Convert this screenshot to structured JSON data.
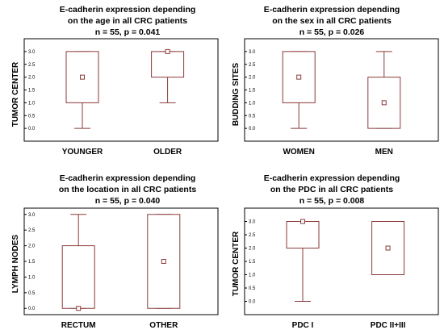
{
  "chart_data": [
    {
      "type": "box",
      "title_lines": [
        "E-cadherin expression depending",
        "on the age in all CRC patients",
        "n = 55, p = 0.041"
      ],
      "ylabel": "TUMOR CENTER",
      "ylim": [
        -0.5,
        3.5
      ],
      "yticks": [
        "0.0",
        "0.5",
        "1.0",
        "1.5",
        "2.0",
        "2.5",
        "3.0"
      ],
      "categories": [
        "YOUNGER",
        "OLDER"
      ],
      "boxes": [
        {
          "min": 0,
          "q1": 1,
          "median": 2,
          "q3": 3,
          "max": 3
        },
        {
          "min": 1,
          "q1": 2,
          "median": 3,
          "q3": 3,
          "max": 3
        }
      ],
      "colors": {
        "box": "#8b3a3a"
      }
    },
    {
      "type": "box",
      "title_lines": [
        "E-cadherin expression depending",
        "on the sex in all CRC patients",
        "n = 55, p = 0.026"
      ],
      "ylabel": "BUDDING SITES",
      "ylim": [
        -0.5,
        3.5
      ],
      "yticks": [
        "0.0",
        "0.5",
        "1.0",
        "1.5",
        "2.0",
        "2.5",
        "3.0"
      ],
      "categories": [
        "WOMEN",
        "MEN"
      ],
      "boxes": [
        {
          "min": 0,
          "q1": 1,
          "median": 2,
          "q3": 3,
          "max": 3
        },
        {
          "min": 0,
          "q1": 0,
          "median": 1,
          "q3": 2,
          "max": 3
        }
      ],
      "colors": {
        "box": "#8b3a3a"
      }
    },
    {
      "type": "box",
      "title_lines": [
        "E-cadherin expression depending",
        "on the location in all CRC patients",
        "n = 55, p = 0.040"
      ],
      "ylabel": "LYMPH NODES",
      "ylim": [
        -0.2,
        3.2
      ],
      "yticks": [
        "0.0",
        "0.5",
        "1.0",
        "1.5",
        "2.0",
        "2.5",
        "3.0"
      ],
      "categories": [
        "RECTUM",
        "OTHER"
      ],
      "boxes": [
        {
          "min": 0,
          "q1": 0,
          "median": 0,
          "q3": 2,
          "max": 3
        },
        {
          "min": 0,
          "q1": 0,
          "median": 1.5,
          "q3": 3,
          "max": 3
        }
      ],
      "colors": {
        "box": "#8b3a3a"
      }
    },
    {
      "type": "box",
      "title_lines": [
        "E-cadherin expression depending",
        "on the PDC in all CRC patients",
        "n = 55, p = 0.008"
      ],
      "ylabel": "TUMOR CENTER",
      "ylim": [
        -0.5,
        3.5
      ],
      "yticks": [
        "0.0",
        "0.5",
        "1.0",
        "1.5",
        "2.0",
        "2.5",
        "3.0"
      ],
      "categories": [
        "PDC I",
        "PDC II+III"
      ],
      "boxes": [
        {
          "min": 0,
          "q1": 2,
          "median": 3,
          "q3": 3,
          "max": 3
        },
        {
          "min": 1,
          "q1": 1,
          "median": 2,
          "q3": 3,
          "max": 3
        }
      ],
      "colors": {
        "box": "#8b3a3a"
      }
    }
  ]
}
